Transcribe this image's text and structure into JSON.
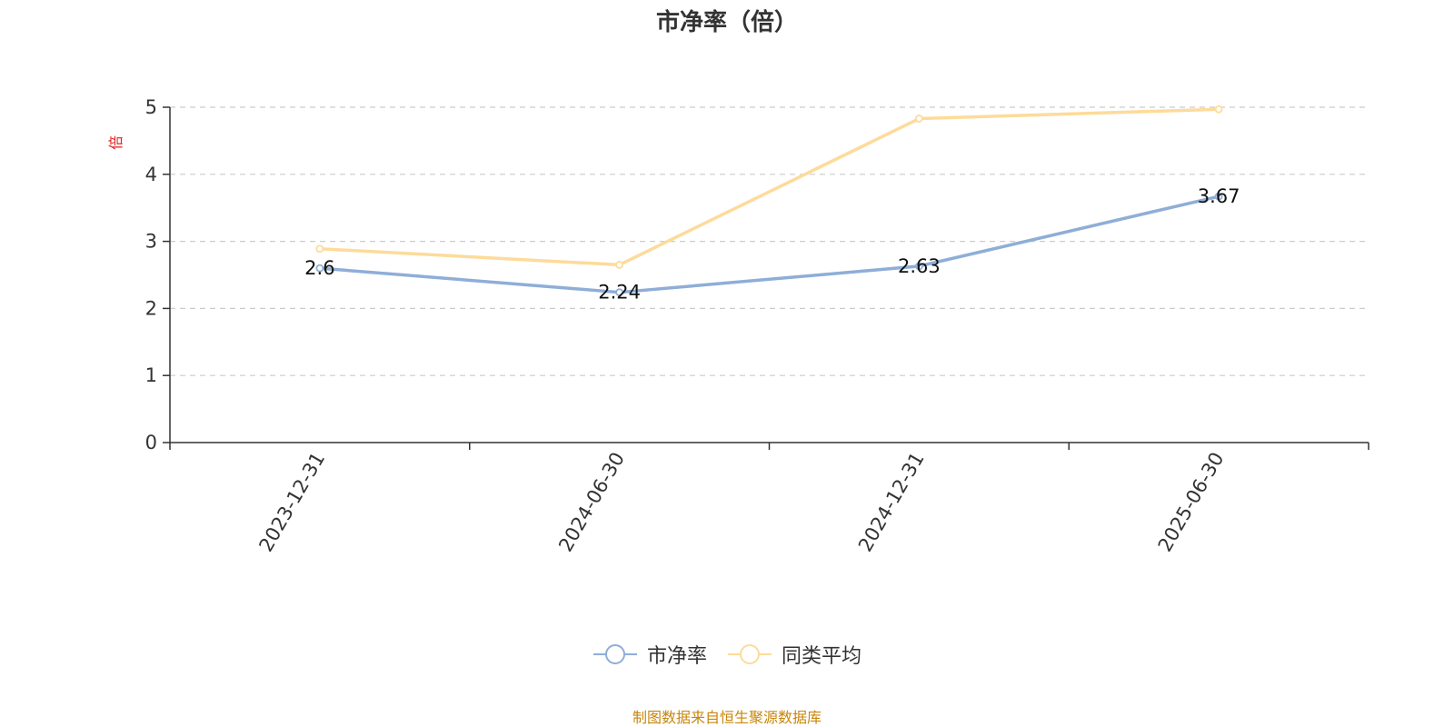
{
  "chart_data": {
    "type": "line",
    "title": "市净率（倍）",
    "ylabel": "倍",
    "ylim": [
      0,
      5
    ],
    "yticks": [
      0,
      1,
      2,
      3,
      4,
      5
    ],
    "grid": true,
    "legend_position": "bottom",
    "categories": [
      "2023-12-31",
      "2024-06-30",
      "2024-12-31",
      "2025-06-30"
    ],
    "series": [
      {
        "name": "市净率",
        "color": "#8eaed8",
        "values": [
          2.6,
          2.24,
          2.63,
          3.67
        ],
        "labels": [
          "2.6",
          "2.24",
          "2.63",
          "3.67"
        ]
      },
      {
        "name": "同类平均",
        "color": "#fddb9a",
        "values": [
          2.89,
          2.65,
          4.83,
          4.97
        ]
      }
    ]
  },
  "source": "制图数据来自恒生聚源数据库"
}
